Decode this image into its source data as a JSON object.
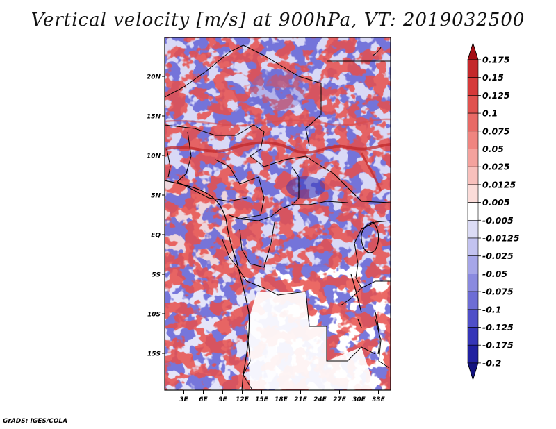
{
  "title": "Vertical velocity [m/s] at 900hPa, VT: 2019032500",
  "credit": "GrADS: IGES/COLA",
  "map": {
    "region": "Central Africa",
    "lat_labels": [
      "20N",
      "15N",
      "10N",
      "5N",
      "EQ",
      "5S",
      "10S",
      "15S"
    ],
    "lon_labels": [
      "3E",
      "6E",
      "9E",
      "12E",
      "15E",
      "18E",
      "21E",
      "24E",
      "27E",
      "30E",
      "33E"
    ],
    "lon_range": [
      0,
      35
    ],
    "lat_range": [
      -20,
      24.5
    ]
  },
  "colorbar": {
    "labels": [
      "0.175",
      "0.15",
      "0.125",
      "0.1",
      "0.075",
      "0.05",
      "0.025",
      "0.0125",
      "0.005",
      "-0.005",
      "-0.0125",
      "-0.025",
      "-0.05",
      "-0.075",
      "-0.1",
      "-0.125",
      "-0.175",
      "-0.2"
    ],
    "colors": [
      "#a50f15",
      "#c4282b",
      "#d63a3a",
      "#e0524f",
      "#e86a66",
      "#ef8580",
      "#f4a29d",
      "#f8c0bc",
      "#fbdcd9",
      "#ffffff",
      "#dcdcf6",
      "#c3c3f0",
      "#a6a6e8",
      "#8a8adf",
      "#6d6dd5",
      "#4f4fc8",
      "#3535b8",
      "#2020a0",
      "#12127f"
    ]
  }
}
